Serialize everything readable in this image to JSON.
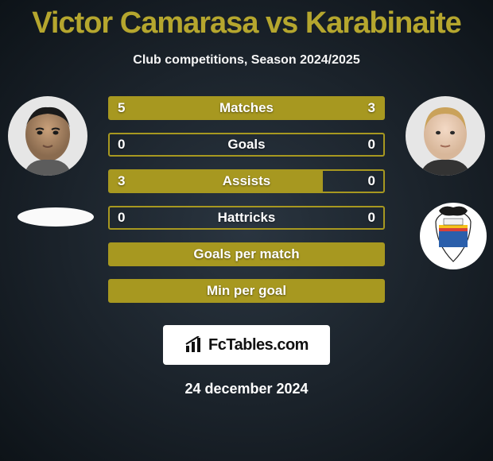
{
  "title_color": "#b5a62e",
  "title": "Victor Camarasa vs Karabinaite",
  "subtitle": "Club competitions, Season 2024/2025",
  "player1_name": "Victor Camarasa",
  "player2_name": "Karabinaite",
  "bars": [
    {
      "label": "Matches",
      "left": "5",
      "right": "3",
      "lw": 62,
      "rw": 38,
      "colorL": "#a79820",
      "colorR": "#a79820",
      "border": "#a79820"
    },
    {
      "label": "Goals",
      "left": "0",
      "right": "0",
      "lw": 0,
      "rw": 0,
      "colorL": "#a79820",
      "colorR": "#a79820",
      "border": "#a79820"
    },
    {
      "label": "Assists",
      "left": "3",
      "right": "0",
      "lw": 78,
      "rw": 0,
      "colorL": "#a79820",
      "colorR": "#a79820",
      "border": "#a79820"
    },
    {
      "label": "Hattricks",
      "left": "0",
      "right": "0",
      "lw": 0,
      "rw": 0,
      "colorL": "#a79820",
      "colorR": "#a79820",
      "border": "#a79820"
    },
    {
      "label": "Goals per match",
      "left": "",
      "right": "",
      "lw": 100,
      "rw": 0,
      "colorL": "#a79820",
      "colorR": "#a79820",
      "border": "#a79820"
    },
    {
      "label": "Min per goal",
      "left": "",
      "right": "",
      "lw": 100,
      "rw": 0,
      "colorL": "#a79820",
      "colorR": "#a79820",
      "border": "#a79820"
    }
  ],
  "brand_prefix_icon": "📈",
  "brand": "FcTables.com",
  "date": "24 december 2024",
  "background": "#1d262f",
  "club2_colors": {
    "top": "#000000",
    "bat": "#3a3a3a",
    "body": "#ffffff",
    "stripes": [
      "#f6c21b",
      "#d8413a",
      "#2b5fab"
    ]
  }
}
